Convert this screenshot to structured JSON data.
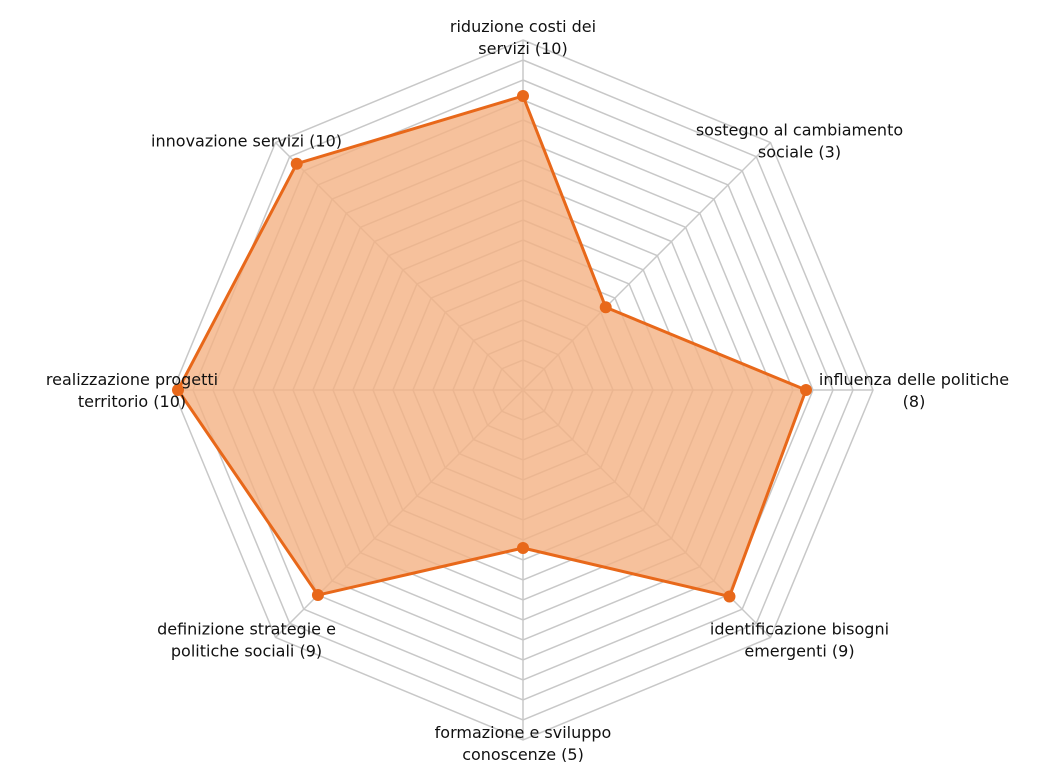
{
  "chart_data": {
    "type": "radar",
    "categories": [
      "riduzione costi dei\nservizi (10)",
      "sostegno al cambiamento\nsociale (3)",
      "influenza delle politiche\n(8)",
      "identificazione bisogni\nemergenti (9)",
      "formazione e sviluppo\nconoscenze (5)",
      "definizione strategie e\npolitiche sociali (9)",
      "realizzazione progetti\nterritorio (10)",
      "innovazione servizi (10)"
    ],
    "values": [
      14.7,
      5.85,
      14.15,
      14.6,
      7.9,
      14.5,
      17.25,
      16
    ],
    "color": "#e8681a",
    "fill": "#f4b183",
    "ylim": [
      0,
      17.5
    ],
    "yticks": [
      1.5,
      2.5,
      3.5,
      4.5,
      5.5,
      6.5,
      7.5,
      8.5,
      9.5,
      10.5,
      11.5,
      12.5,
      13.5,
      14.5,
      15.5,
      16.5,
      17.5
    ],
    "grid": true
  }
}
